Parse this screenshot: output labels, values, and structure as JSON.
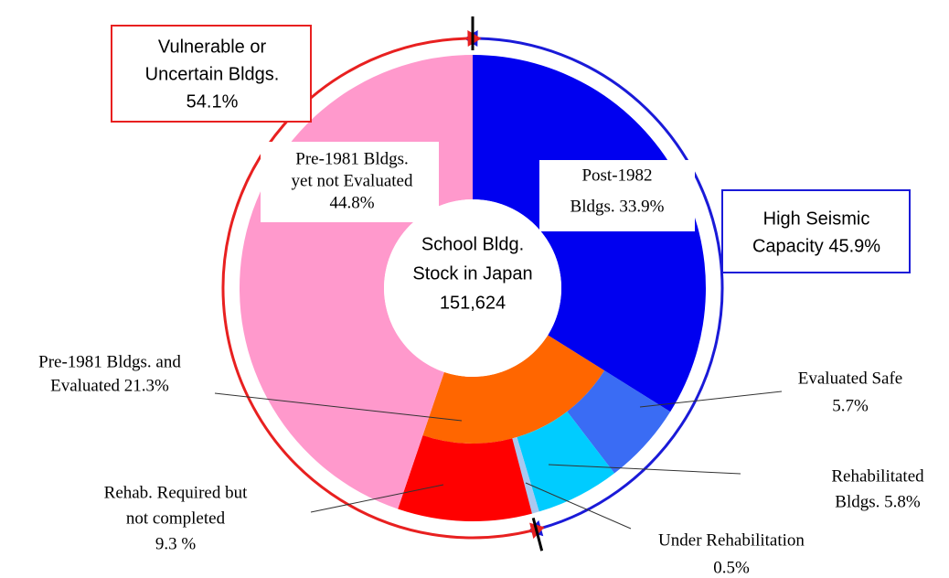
{
  "chart_data": {
    "type": "sunburst",
    "center_label": [
      "School Bldg.",
      "Stock in Japan",
      "151,624"
    ],
    "segments": [
      {
        "label": [
          "Post-1982",
          "Bldgs. 33.9%"
        ],
        "value": 33.9,
        "color": "#0000f0",
        "ring": "full"
      },
      {
        "label": [
          "Pre-1981 Bldgs. and",
          "Evaluated 21.3%"
        ],
        "value": 21.3,
        "color": "#ff6600",
        "ring": "inner"
      },
      {
        "label": [
          "Evaluated Safe",
          "5.7%"
        ],
        "value": 5.7,
        "color": "#3a6cf4",
        "ring": "outer"
      },
      {
        "label": [
          "Rehabilitated",
          "Bldgs. 5.8%"
        ],
        "value": 5.8,
        "color": "#00ccff",
        "ring": "outer"
      },
      {
        "label": [
          "Under Rehabilitation",
          "0.5%"
        ],
        "value": 0.5,
        "color": "#a8c8f0",
        "ring": "outer"
      },
      {
        "label": [
          "Rehab. Required but",
          "not completed",
          "9.3 %"
        ],
        "value": 9.3,
        "color": "#ff0000",
        "ring": "outer"
      },
      {
        "label": [
          "Pre-1981 Bldgs.",
          "yet not Evaluated",
          "44.8%"
        ],
        "value": 44.8,
        "color": "#ff99cc",
        "ring": "full"
      }
    ],
    "groups": [
      {
        "label": [
          "High Seismic",
          "Capacity 45.9%"
        ],
        "value": 45.9,
        "color": "#1a1ad8"
      },
      {
        "label": [
          "Vulnerable or",
          "Uncertain Bldgs.",
          "54.1%"
        ],
        "value": 54.1,
        "color": "#e82020"
      }
    ]
  }
}
